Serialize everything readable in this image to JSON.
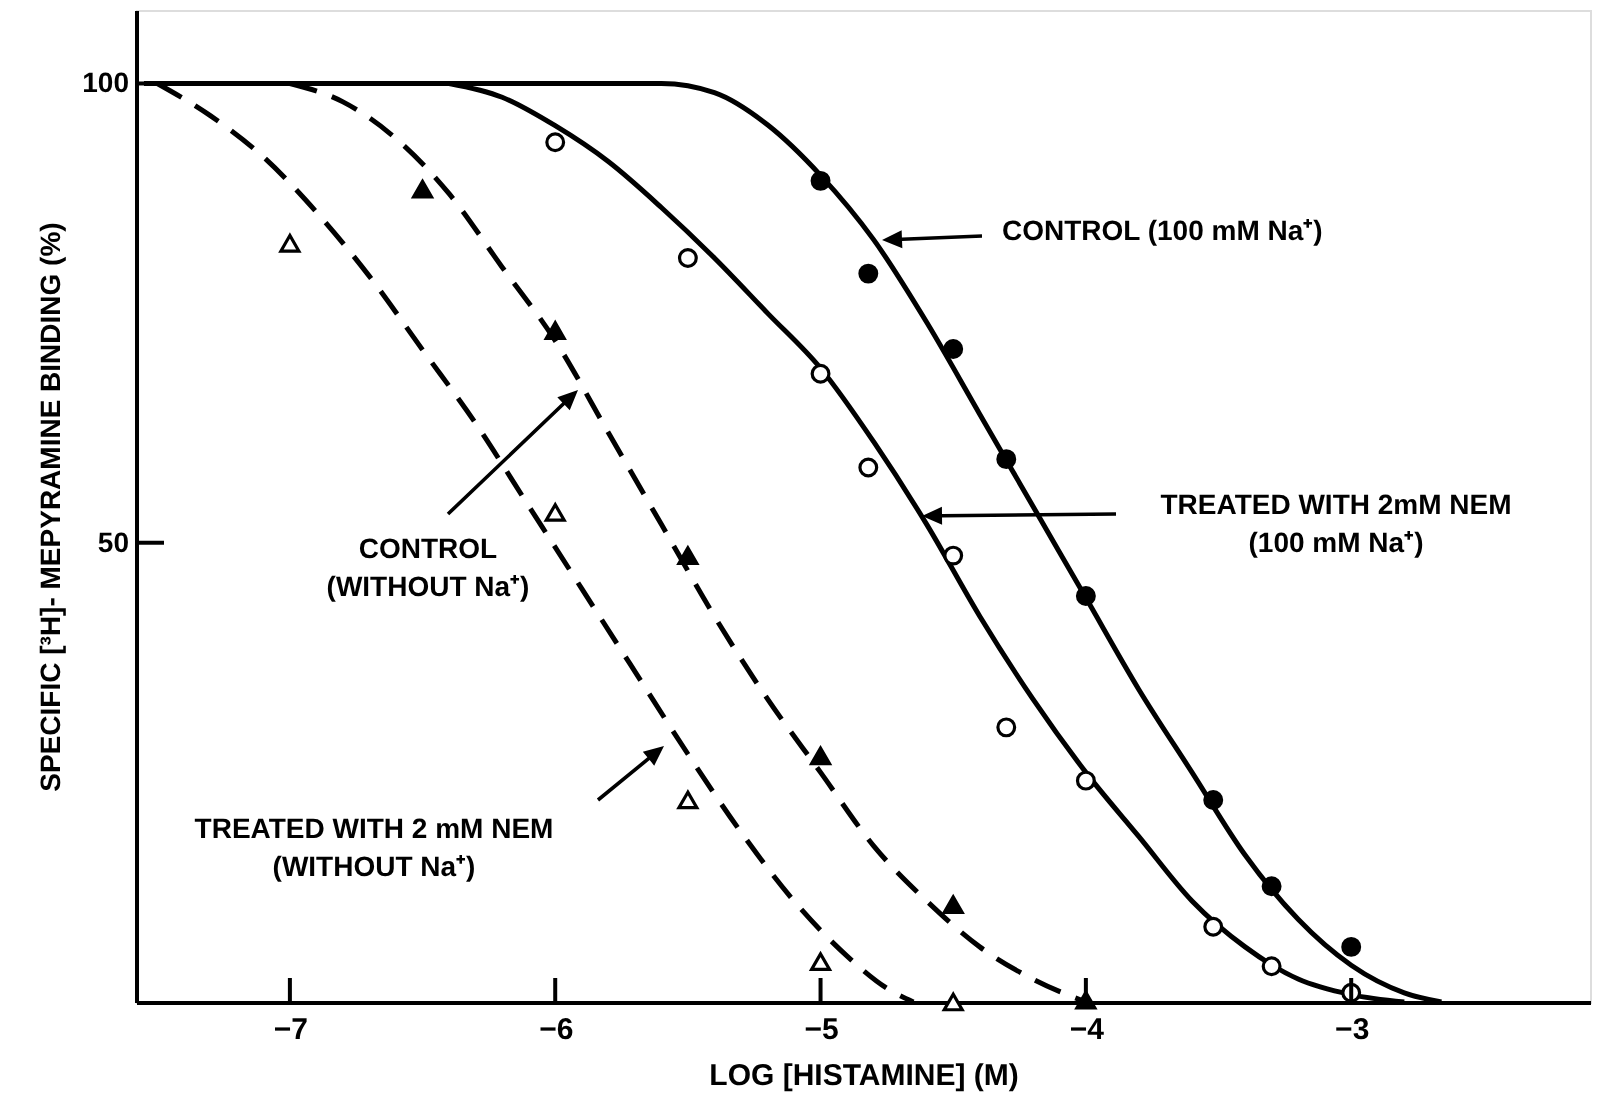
{
  "chart_data": {
    "type": "scatter",
    "xlabel": "LOG [HISTAMINE] (M)",
    "ylabel": "SPECIFIC [³H]- MEPYRAMINE BINDING (%)",
    "xlim": [
      -7.58,
      -2.1
    ],
    "ylim": [
      0,
      108
    ],
    "xticks": [
      -7,
      -6,
      -5,
      -4,
      -3
    ],
    "yticks": [
      50,
      100
    ],
    "grid": false,
    "series": [
      {
        "marker": "circle",
        "color": "#000000",
        "x": [
          -5.0,
          -4.82,
          -4.5,
          -4.3,
          -4.0,
          -3.52,
          -3.3,
          -3.0
        ],
        "values": [
          89.4,
          79.3,
          71.1,
          59.1,
          44.2,
          22.0,
          12.6,
          6.0
        ]
      },
      {
        "marker": "circle",
        "color": "#000000",
        "x": [
          -6.0,
          -5.5,
          -5.0,
          -4.82,
          -4.5,
          -4.3,
          -4.0,
          -3.52,
          -3.3,
          -3.0
        ],
        "values": [
          93.6,
          81.0,
          68.4,
          58.2,
          48.6,
          29.9,
          24.1,
          8.2,
          3.9,
          1.0
        ]
      },
      {
        "marker": "triangle",
        "color": "#000000",
        "x": [
          -6.5,
          -6.0,
          -5.5,
          -5.0,
          -4.5,
          -4.0
        ],
        "values": [
          88.5,
          73.1,
          48.6,
          26.8,
          10.6,
          0.2
        ]
      },
      {
        "marker": "triangle",
        "color": "#000000",
        "x": [
          -7.0,
          -6.0,
          -5.5,
          -5.0,
          -4.5
        ],
        "values": [
          82.6,
          53.3,
          22.0,
          4.4,
          0.0
        ]
      },
      {
        "type": "line",
        "marker": "none",
        "line_style": "solid",
        "color": "#000000",
        "x": [
          -7.55,
          -5.6,
          -5.4,
          -5.2,
          -5.0,
          -4.8,
          -4.6,
          -4.4,
          -4.2,
          -4.0,
          -3.8,
          -3.6,
          -3.4,
          -3.2,
          -3.0,
          -2.8,
          -2.66
        ],
        "values": [
          100,
          100,
          99,
          95.5,
          90,
          83,
          74,
          64,
          54,
          44,
          34,
          25,
          16,
          9,
          4,
          1,
          0
        ]
      },
      {
        "type": "line",
        "marker": "none",
        "line_style": "solid",
        "color": "#000000",
        "x": [
          -6.4,
          -6.2,
          -6.0,
          -5.8,
          -5.6,
          -5.4,
          -5.2,
          -5.0,
          -4.8,
          -4.6,
          -4.4,
          -4.2,
          -4.0,
          -3.8,
          -3.6,
          -3.4,
          -3.2,
          -3.0,
          -2.8
        ],
        "values": [
          100,
          98.5,
          95.4,
          91.5,
          86.5,
          81,
          75,
          69,
          61,
          52,
          42,
          33,
          25,
          18,
          11,
          6,
          2.5,
          0.8,
          0
        ]
      },
      {
        "type": "line",
        "marker": "none",
        "line_style": "dashed",
        "color": "#000000",
        "x": [
          -7.0,
          -6.8,
          -6.6,
          -6.4,
          -6.2,
          -6.0,
          -5.8,
          -5.6,
          -5.4,
          -5.2,
          -5.0,
          -4.8,
          -4.6,
          -4.4,
          -4.2,
          -4.0
        ],
        "values": [
          100,
          98,
          94,
          88,
          80,
          72,
          62,
          52,
          42,
          33,
          25,
          17,
          11,
          6,
          2.5,
          0
        ]
      },
      {
        "type": "line",
        "marker": "none",
        "line_style": "dashed",
        "color": "#000000",
        "x": [
          -7.5,
          -7.3,
          -7.1,
          -6.9,
          -6.7,
          -6.5,
          -6.3,
          -6.1,
          -5.9,
          -5.7,
          -5.5,
          -5.3,
          -5.1,
          -4.9,
          -4.75,
          -4.65
        ],
        "values": [
          100,
          96.5,
          92,
          86,
          79,
          71,
          63,
          54,
          45,
          36,
          27,
          18.5,
          11,
          5,
          1.5,
          0
        ]
      }
    ],
    "annotations": [
      "CONTROL (100 mM Na⁺)",
      "TREATED WITH 2mM NEM\n(100 mM Na⁺)",
      "CONTROL\n(WITHOUT Na⁺)",
      "TREATED WITH 2 mM NEM\n(WITHOUT Na⁺)"
    ]
  }
}
